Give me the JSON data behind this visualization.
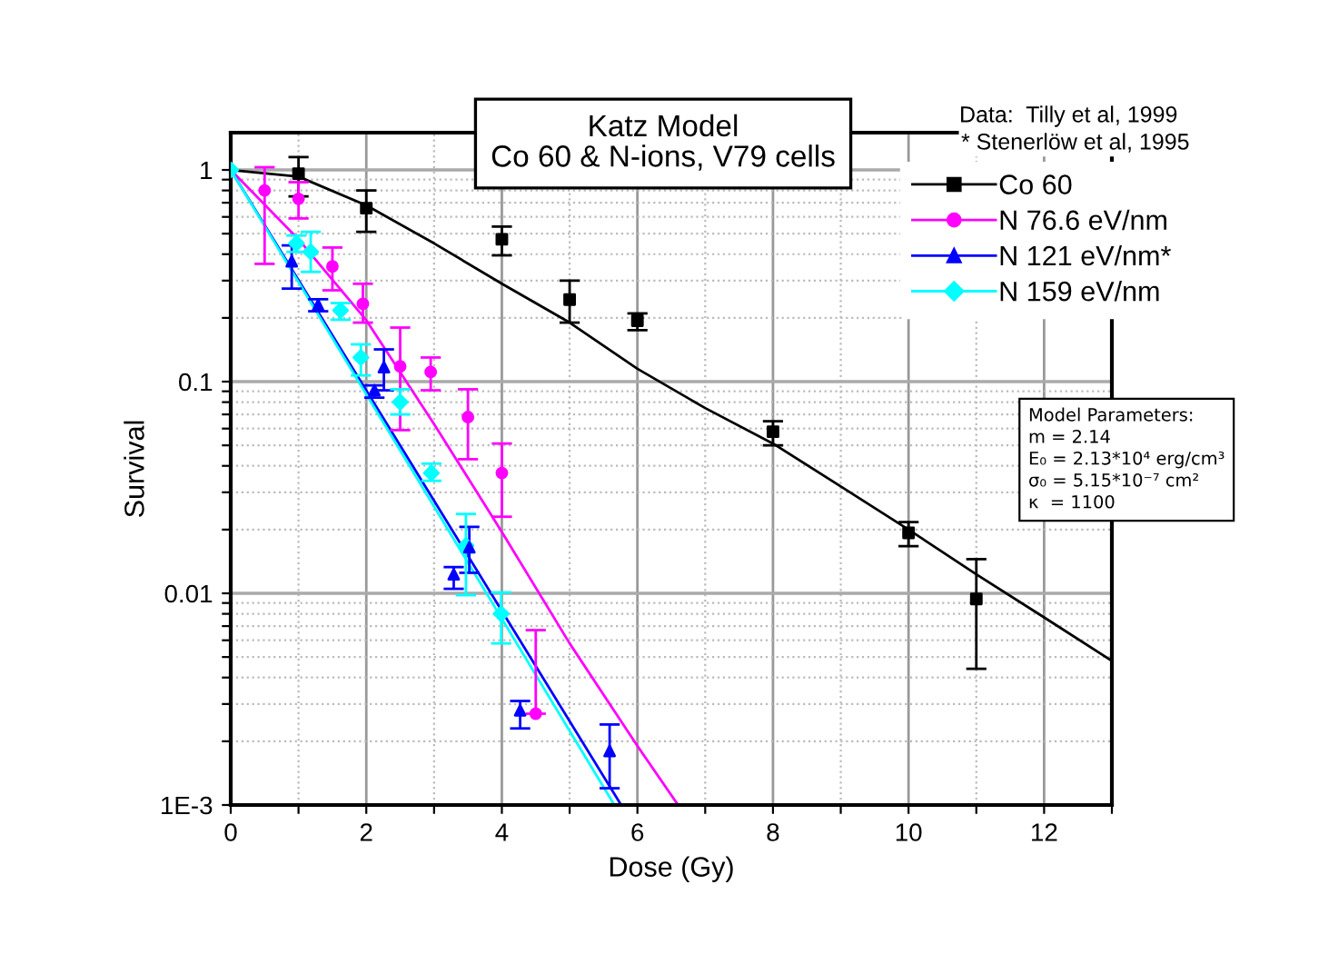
{
  "chart_data": {
    "type": "scatter",
    "title": "Katz Model\nCo 60 & N-ions, V79 cells",
    "xlabel": "Dose (Gy)",
    "ylabel": "Survival",
    "log": "y",
    "grid": true,
    "legend": "top right",
    "xlim": [
      0,
      13
    ],
    "xticks": [
      0,
      {
        "value": 1,
        "label": null
      },
      2,
      {
        "value": 3,
        "label": null
      },
      4,
      {
        "value": 5,
        "label": null
      },
      6,
      {
        "value": 7,
        "label": null
      },
      8,
      {
        "value": 9,
        "label": null
      },
      10,
      {
        "value": 11,
        "label": null
      },
      12,
      {
        "value": 13,
        "label": null
      }
    ],
    "ylim": [
      0.001,
      1.5
    ],
    "yticks": [
      {
        "value": 0.001,
        "label": "1E-3"
      },
      {
        "value": 0.002,
        "label": null
      },
      {
        "value": 0.003,
        "label": null
      },
      {
        "value": 0.004,
        "label": null
      },
      {
        "value": 0.005,
        "label": null
      },
      {
        "value": 0.006,
        "label": null
      },
      {
        "value": 0.007,
        "label": null
      },
      {
        "value": 0.008,
        "label": null
      },
      {
        "value": 0.009,
        "label": null
      },
      0.01,
      {
        "value": 0.02,
        "label": null
      },
      {
        "value": 0.03,
        "label": null
      },
      {
        "value": 0.04,
        "label": null
      },
      {
        "value": 0.05,
        "label": null
      },
      {
        "value": 0.06,
        "label": null
      },
      {
        "value": 0.07,
        "label": null
      },
      {
        "value": 0.08,
        "label": null
      },
      {
        "value": 0.09,
        "label": null
      },
      0.1,
      {
        "value": 0.2,
        "label": null
      },
      {
        "value": 0.3,
        "label": null
      },
      {
        "value": 0.4,
        "label": null
      },
      {
        "value": 0.5,
        "label": null
      },
      {
        "value": 0.6,
        "label": null
      },
      {
        "value": 0.7,
        "label": null
      },
      {
        "value": 0.8,
        "label": null
      },
      {
        "value": 0.9,
        "label": null
      },
      1
    ],
    "annotations": [
      "Data:  Tilly et al, 1999",
      "* Stenerlöw et al, 1995",
      "Model Parameters:\nm = 2.14\nE₀ = 2.13*10⁴ erg/cm³\nσ₀ = 5.15*10⁻⁷ cm²\nκ  = 1100"
    ],
    "series": [
      {
        "type": "line",
        "color": "#000000",
        "x": [
          0,
          1,
          2,
          3,
          4,
          5,
          6,
          7,
          8,
          9,
          10,
          11,
          12,
          13
        ],
        "values": [
          1,
          0.93,
          0.68,
          0.45,
          0.29,
          0.19,
          0.115,
          0.075,
          0.051,
          0.032,
          0.02,
          0.0123,
          0.0077,
          0.0048
        ]
      },
      {
        "type": "line",
        "color": "#ff00ff",
        "x": [
          0,
          1,
          2,
          3,
          4,
          5,
          6,
          6.6
        ],
        "values": [
          1,
          0.47,
          0.195,
          0.063,
          0.0195,
          0.0058,
          0.0019,
          0.001
        ]
      },
      {
        "type": "line",
        "color": "#0000ff",
        "x": [
          0,
          5.76
        ],
        "values": [
          1,
          0.001
        ]
      },
      {
        "type": "line",
        "color": "#00ffff",
        "x": [
          0,
          5.66
        ],
        "values": [
          1,
          0.001
        ]
      },
      {
        "name": "Co 60",
        "marker": "square",
        "color": "#000000",
        "x": [
          1,
          2,
          4,
          5,
          6,
          8,
          10,
          11
        ],
        "values": [
          0.96,
          0.66,
          0.47,
          0.244,
          0.194,
          0.058,
          0.0193,
          0.0094
        ],
        "errors": [
          [
            0.75,
            1.15
          ],
          [
            0.51,
            0.8
          ],
          [
            0.395,
            0.54
          ],
          [
            0.19,
            0.3
          ],
          [
            0.175,
            0.21
          ],
          [
            0.05,
            0.065
          ],
          [
            0.0167,
            0.0217
          ],
          [
            0.0044,
            0.0145
          ]
        ]
      },
      {
        "name": "N 76.6 eV/nm",
        "marker": "circle",
        "color": "#ff00ff",
        "x": [
          0.5,
          1,
          1.5,
          1.95,
          2.5,
          2.95,
          3.5,
          4,
          4.5
        ],
        "values": [
          0.8,
          0.73,
          0.35,
          0.233,
          0.118,
          0.111,
          0.068,
          0.037,
          0.0027
        ],
        "errors": [
          [
            0.36,
            1.03
          ],
          [
            0.59,
            0.875
          ],
          [
            0.27,
            0.43
          ],
          [
            0.19,
            0.29
          ],
          [
            0.059,
            0.18
          ],
          [
            0.091,
            0.13
          ],
          [
            0.043,
            0.092
          ],
          [
            0.023,
            0.051
          ],
          [
            0.0027,
            0.0067
          ]
        ]
      },
      {
        "name": "N 121 eV/nm*",
        "marker": "triangle",
        "color": "#0000ff",
        "x": [
          0.9,
          1.29,
          2.12,
          2.26,
          3.29,
          3.52,
          4.27,
          5.59
        ],
        "values": [
          0.37,
          0.23,
          0.091,
          0.117,
          0.0123,
          0.0165,
          0.0028,
          0.0018
        ],
        "errors": [
          [
            0.275,
            0.44
          ],
          [
            0.215,
            0.245
          ],
          [
            0.084,
            0.096
          ],
          [
            0.091,
            0.142
          ],
          [
            0.0105,
            0.0133
          ],
          [
            0.0125,
            0.0206
          ],
          [
            0.0023,
            0.0031
          ],
          [
            0.0012,
            0.0024
          ]
        ]
      },
      {
        "name": "N 159 eV/nm",
        "marker": "diamond",
        "color": "#00ffff",
        "x": [
          0,
          0.97,
          1.18,
          1.62,
          1.92,
          2.5,
          2.96,
          3.47,
          3.99
        ],
        "values": [
          1,
          0.45,
          0.41,
          0.217,
          0.13,
          0.08,
          0.037,
          0.0168,
          0.008
        ],
        "errors": [
          null,
          [
            0.41,
            0.49
          ],
          [
            0.33,
            0.51
          ],
          [
            0.196,
            0.235
          ],
          [
            0.107,
            0.15
          ],
          [
            0.07,
            0.092
          ],
          [
            0.034,
            0.041
          ],
          [
            0.0098,
            0.0237
          ],
          [
            0.0058,
            0.0101
          ]
        ]
      }
    ]
  }
}
